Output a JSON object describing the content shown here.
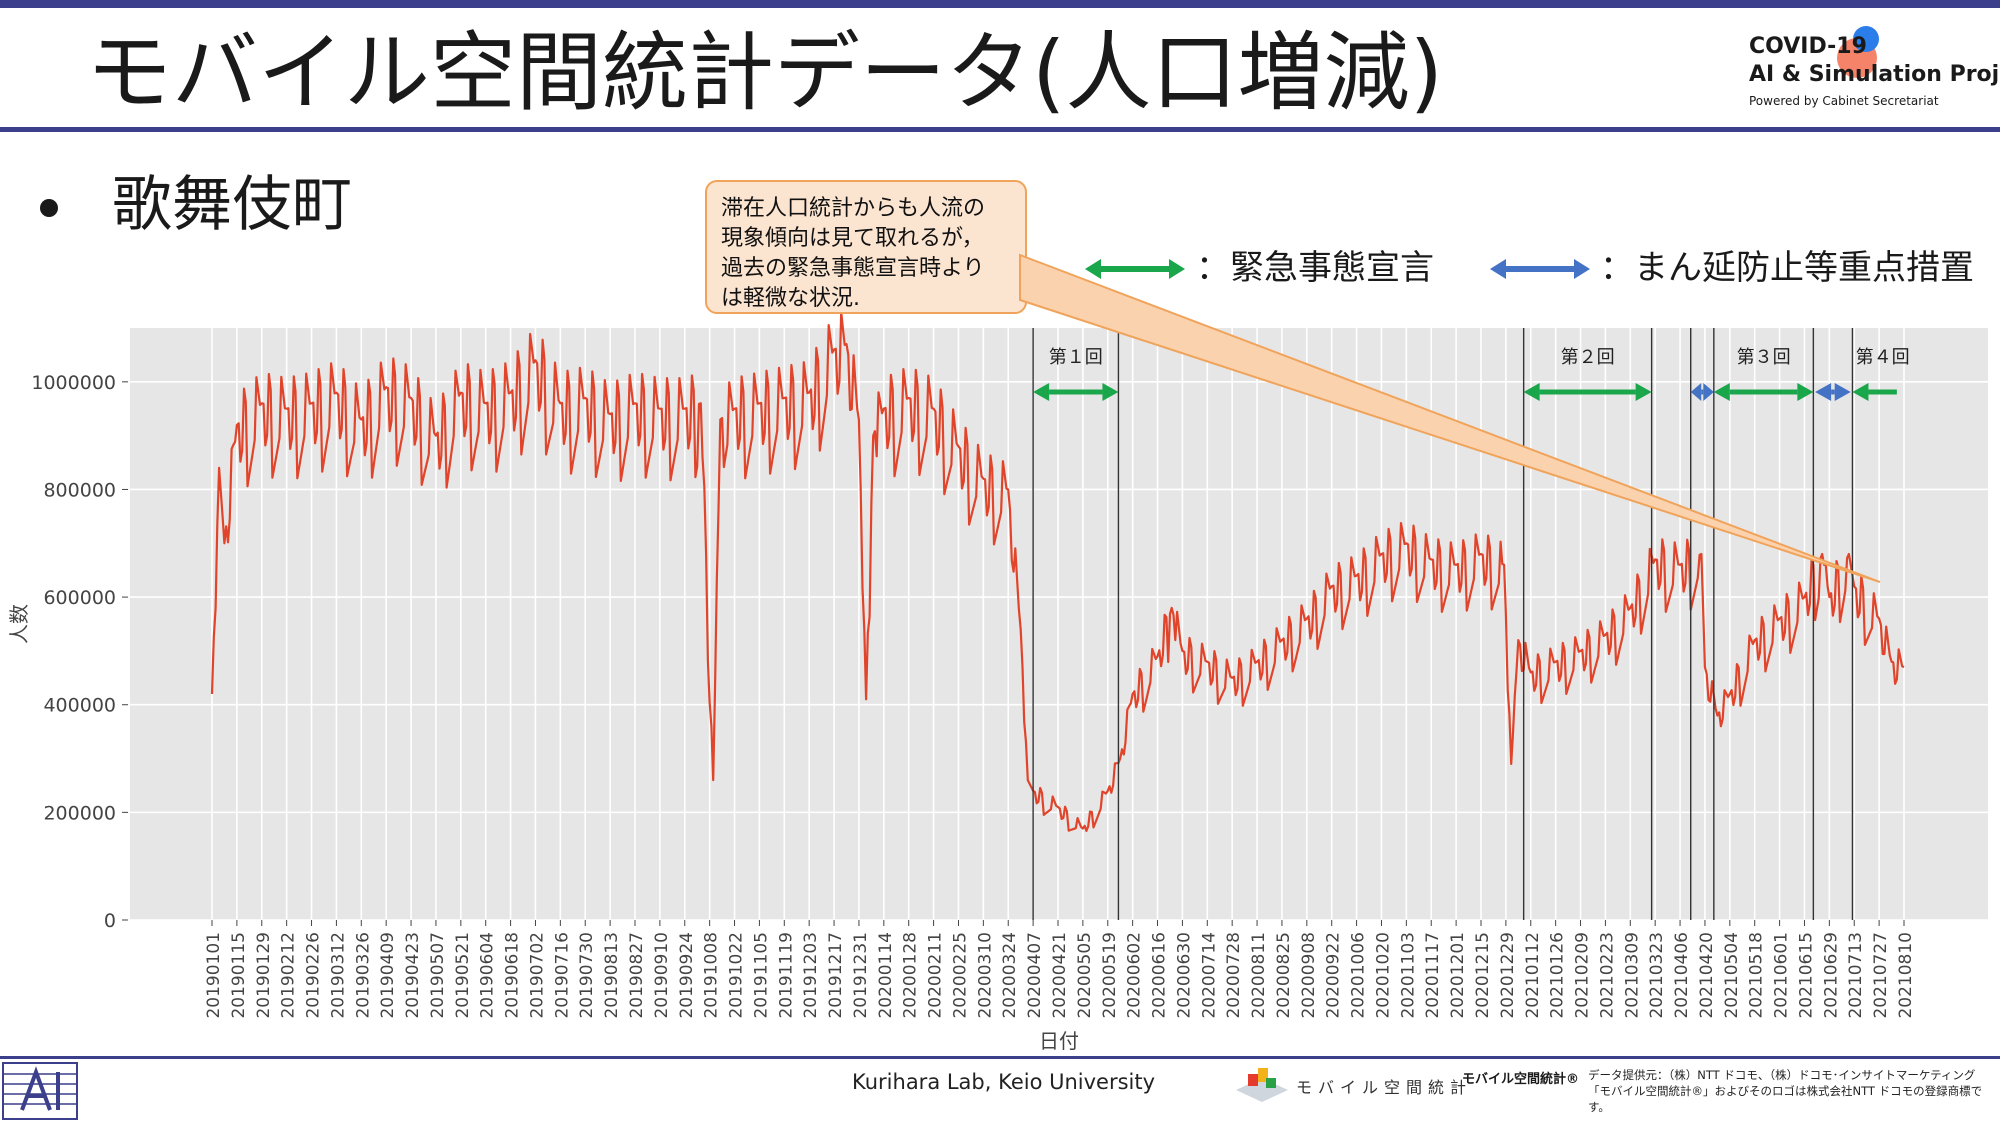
{
  "page": {
    "title": "モバイル空間統計データ(人口増減)",
    "bullet": "歌舞伎町",
    "logo": {
      "line1": "COVID-19",
      "line2": "AI & Simulation Project",
      "line3": "Powered by Cabinet Secretariat"
    },
    "callout": "滞在人口統計からも人流の\n現象傾向は見て取れるが，\n過去の緊急事態宣言時より\nは軽微な状況.",
    "legend": [
      {
        "label": "：緊急事態宣言",
        "color": "#1aa64a"
      },
      {
        "label": "：まん延防止等重点措置",
        "color": "#4472c4"
      }
    ],
    "footer": {
      "center": "Kurihara Lab, Keio University",
      "brand_label": "モバイル空間統計",
      "brand_mark": "モバイル空間統計®",
      "credit": "データ提供元：（株）NTT ドコモ、（株）ドコモ･インサイトマーケティング\n「モバイル空間統計®」およびそのロゴは株式会社NTT ドコモの登録商標です。"
    },
    "colors": {
      "accent": "#3b3f8c",
      "line": "#e0452b",
      "callout_fill": "#fbe4d0",
      "callout_border": "#f0a35a"
    }
  },
  "chart_data": {
    "type": "line",
    "title": "",
    "xlabel": "日付",
    "ylabel": "人数",
    "ylim": [
      0,
      1100000
    ],
    "yticks": [
      0,
      200000,
      400000,
      600000,
      800000,
      1000000
    ],
    "ytick_labels": [
      "0",
      "200000",
      "400000",
      "600000",
      "800000",
      "1000000"
    ],
    "xlim": [
      "20190101",
      "20210815"
    ],
    "xtick_labels": [
      "20190101",
      "20190115",
      "20190129",
      "20190212",
      "20190226",
      "20190312",
      "20190326",
      "20190409",
      "20190423",
      "20190507",
      "20190521",
      "20190604",
      "20190618",
      "20190702",
      "20190716",
      "20190730",
      "20190813",
      "20190827",
      "20190910",
      "20190924",
      "20191008",
      "20191022",
      "20191105",
      "20191119",
      "20191203",
      "20191217",
      "20191231",
      "20200114",
      "20200128",
      "20200211",
      "20200225",
      "20200310",
      "20200324",
      "20200407",
      "20200421",
      "20200505",
      "20200519",
      "20200602",
      "20200616",
      "20200630",
      "20200714",
      "20200728",
      "20200811",
      "20200825",
      "20200908",
      "20200922",
      "20201006",
      "20201020",
      "20201103",
      "20201117",
      "20201201",
      "20201215",
      "20201229",
      "20210112",
      "20210126",
      "20210209",
      "20210223",
      "20210309",
      "20210323",
      "20210406",
      "20210420",
      "20210504",
      "20210518",
      "20210601",
      "20210615",
      "20210629",
      "20210713",
      "20210727",
      "20210810"
    ],
    "grid": true,
    "series": [
      {
        "color": "#e0452b",
        "points": [
          [
            "20190101",
            420000
          ],
          [
            "20190105",
            840000
          ],
          [
            "20190108",
            700000
          ],
          [
            "20190115",
            920000
          ],
          [
            "20190129",
            960000
          ],
          [
            "20190212",
            950000
          ],
          [
            "20190226",
            960000
          ],
          [
            "20190312",
            980000
          ],
          [
            "20190326",
            930000
          ],
          [
            "20190409",
            990000
          ],
          [
            "20190423",
            970000
          ],
          [
            "20190507",
            900000
          ],
          [
            "20190521",
            980000
          ],
          [
            "20190604",
            960000
          ],
          [
            "20190618",
            980000
          ],
          [
            "20190702",
            1040000
          ],
          [
            "20190716",
            960000
          ],
          [
            "20190730",
            970000
          ],
          [
            "20190813",
            940000
          ],
          [
            "20190827",
            960000
          ],
          [
            "20190910",
            950000
          ],
          [
            "20190924",
            950000
          ],
          [
            "20191003",
            960000
          ],
          [
            "20191010",
            260000
          ],
          [
            "20191014",
            930000
          ],
          [
            "20191022",
            950000
          ],
          [
            "20191105",
            960000
          ],
          [
            "20191119",
            970000
          ],
          [
            "20191203",
            980000
          ],
          [
            "20191217",
            1060000
          ],
          [
            "20191224",
            1070000
          ],
          [
            "20191231",
            930000
          ],
          [
            "20200104",
            410000
          ],
          [
            "20200108",
            900000
          ],
          [
            "20200114",
            950000
          ],
          [
            "20200128",
            970000
          ],
          [
            "20200211",
            950000
          ],
          [
            "20200225",
            880000
          ],
          [
            "20200310",
            820000
          ],
          [
            "20200324",
            800000
          ],
          [
            "20200331",
            540000
          ],
          [
            "20200404",
            260000
          ],
          [
            "20200407",
            240000
          ],
          [
            "20200421",
            210000
          ],
          [
            "20200505",
            170000
          ],
          [
            "20200519",
            240000
          ],
          [
            "20200526",
            300000
          ],
          [
            "20200602",
            420000
          ],
          [
            "20200616",
            490000
          ],
          [
            "20200624",
            580000
          ],
          [
            "20200630",
            500000
          ],
          [
            "20200714",
            480000
          ],
          [
            "20200728",
            450000
          ],
          [
            "20200811",
            480000
          ],
          [
            "20200825",
            520000
          ],
          [
            "20200908",
            560000
          ],
          [
            "20200922",
            620000
          ],
          [
            "20201006",
            640000
          ],
          [
            "20201020",
            680000
          ],
          [
            "20201103",
            700000
          ],
          [
            "20201117",
            670000
          ],
          [
            "20201201",
            660000
          ],
          [
            "20201215",
            680000
          ],
          [
            "20201228",
            660000
          ],
          [
            "20210101",
            290000
          ],
          [
            "20210105",
            520000
          ],
          [
            "20210112",
            460000
          ],
          [
            "20210126",
            480000
          ],
          [
            "20210209",
            500000
          ],
          [
            "20210223",
            530000
          ],
          [
            "20210309",
            580000
          ],
          [
            "20210323",
            670000
          ],
          [
            "20210406",
            660000
          ],
          [
            "20210418",
            680000
          ],
          [
            "20210420",
            470000
          ],
          [
            "20210427",
            380000
          ],
          [
            "20210504",
            420000
          ],
          [
            "20210518",
            520000
          ],
          [
            "20210601",
            560000
          ],
          [
            "20210615",
            600000
          ],
          [
            "20210625",
            680000
          ],
          [
            "20210629",
            600000
          ],
          [
            "20210710",
            680000
          ],
          [
            "20210713",
            620000
          ],
          [
            "20210727",
            560000
          ],
          [
            "20210803",
            480000
          ],
          [
            "20210810",
            470000
          ]
        ]
      }
    ],
    "vlines": [
      "20200407",
      "20200525",
      "20210108",
      "20210321",
      "20210412",
      "20210425",
      "20210620",
      "20210712"
    ],
    "periods": [
      {
        "label": "第１回",
        "type": "緊急事態宣言",
        "start": "20200407",
        "end": "20200525"
      },
      {
        "label": "第２回",
        "type": "緊急事態宣言",
        "start": "20210108",
        "end": "20210321"
      },
      {
        "label": "",
        "type": "まん延防止等重点措置",
        "start": "20210412",
        "end": "20210425"
      },
      {
        "label": "第３回",
        "type": "緊急事態宣言",
        "start": "20210425",
        "end": "20210620"
      },
      {
        "label": "",
        "type": "まん延防止等重点措置",
        "start": "20210621",
        "end": "20210711"
      },
      {
        "label": "第４回",
        "type": "緊急事態宣言",
        "start": "20210712",
        "end": "20210815"
      }
    ],
    "annotations": [
      "第１回",
      "第２回",
      "第３回",
      "第４回"
    ]
  }
}
